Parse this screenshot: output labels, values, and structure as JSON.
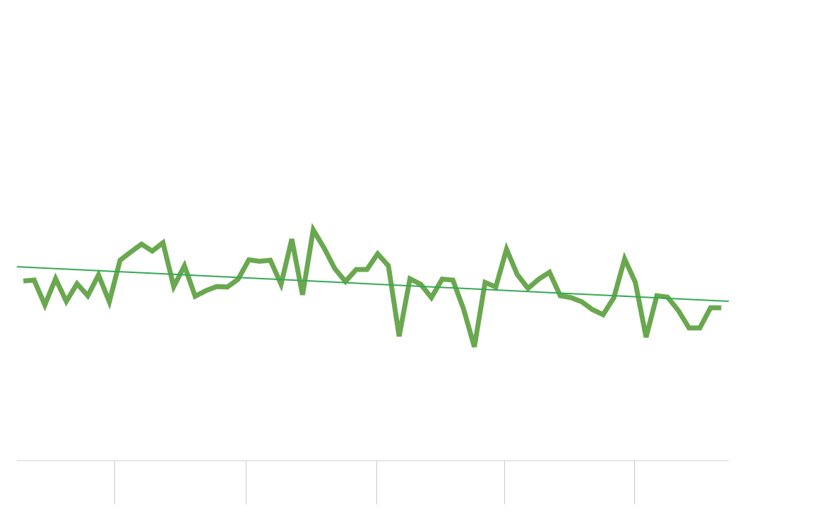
{
  "chart_data": {
    "type": "line",
    "title": "",
    "xlabel": "",
    "ylabel": "",
    "x": [
      0,
      1,
      2,
      3,
      4,
      5,
      6,
      7,
      8,
      9,
      10,
      11,
      12,
      13,
      14,
      15,
      16,
      17,
      18,
      19,
      20,
      21,
      22,
      23,
      24,
      25,
      26,
      27,
      28,
      29,
      30,
      31,
      32,
      33,
      34,
      35,
      36,
      37,
      38,
      39,
      40,
      41,
      42,
      43,
      44,
      45,
      46,
      47,
      48,
      49,
      50,
      51,
      52,
      53,
      54,
      55,
      56,
      57,
      58,
      59,
      60,
      61,
      62,
      63,
      64,
      65
    ],
    "series": [
      {
        "values": [
          39.0,
          39.2,
          33.8,
          39.5,
          34.6,
          38.4,
          35.8,
          40.3,
          34.5,
          43.5,
          45.3,
          47.0,
          45.5,
          47.3,
          37.8,
          42.3,
          35.7,
          36.9,
          37.8,
          37.7,
          39.4,
          43.6,
          43.3,
          43.5,
          38.3,
          48.1,
          36.0,
          50.1,
          46.2,
          41.7,
          38.9,
          41.5,
          41.5,
          44.9,
          42.3,
          27.0,
          39.5,
          38.3,
          35.4,
          39.4,
          39.2,
          32.9,
          24.7,
          38.7,
          37.7,
          45.9,
          40.4,
          37.4,
          39.4,
          40.9,
          35.8,
          35.4,
          34.5,
          32.8,
          31.7,
          35.4,
          43.8,
          38.7,
          26.8,
          35.8,
          35.5,
          32.6,
          28.8,
          28.8,
          33.2,
          33.2
        ],
        "color": "#6aa84f"
      }
    ],
    "trendline": {
      "start": 42.1,
      "end": 34.6,
      "color": "#34a853"
    },
    "xlim": [
      -0.6,
      65.7
    ],
    "ylim": [
      0,
      100
    ],
    "x_ticks": [
      8.5,
      20.7,
      32.9,
      44.8,
      56.9
    ],
    "tick_labels": [],
    "grid": false,
    "legend": "none",
    "axis_color": "#cccccc"
  }
}
